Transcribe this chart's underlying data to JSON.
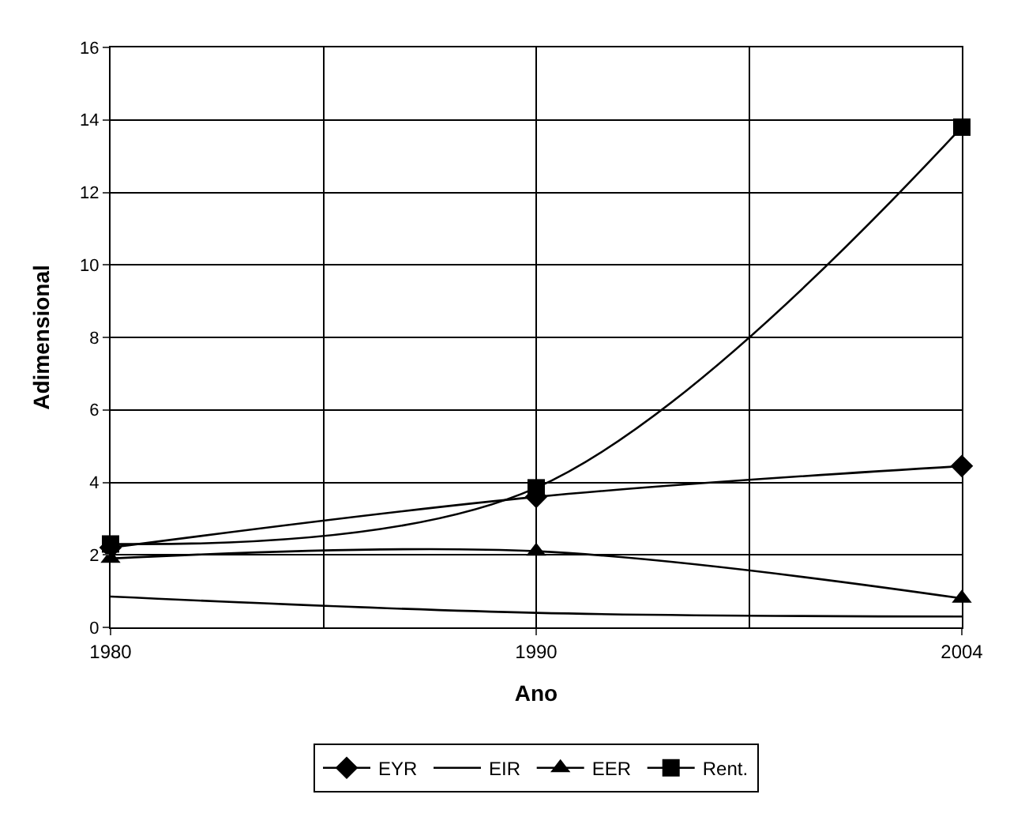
{
  "chart_data": {
    "type": "line",
    "xlabel": "Ano",
    "ylabel": "Adimensional",
    "categories": [
      "1980",
      "1990",
      "2004"
    ],
    "series": [
      {
        "name": "EYR",
        "color": "#000000",
        "marker": "diamond",
        "values": [
          2.2,
          3.6,
          4.45
        ]
      },
      {
        "name": "EIR",
        "color": "#000000",
        "marker": "none",
        "values": [
          0.85,
          0.4,
          0.3
        ]
      },
      {
        "name": "EER",
        "color": "#000000",
        "marker": "triangle",
        "values": [
          1.9,
          2.1,
          0.8
        ]
      },
      {
        "name": "Rent.",
        "color": "#000000",
        "marker": "square",
        "values": [
          2.3,
          3.85,
          13.8
        ]
      }
    ],
    "ylim": [
      0,
      16
    ],
    "yticks": [
      0,
      2,
      4,
      6,
      8,
      10,
      12,
      14,
      16
    ],
    "grid": true,
    "legend": "bottom",
    "line_style": "solid"
  }
}
